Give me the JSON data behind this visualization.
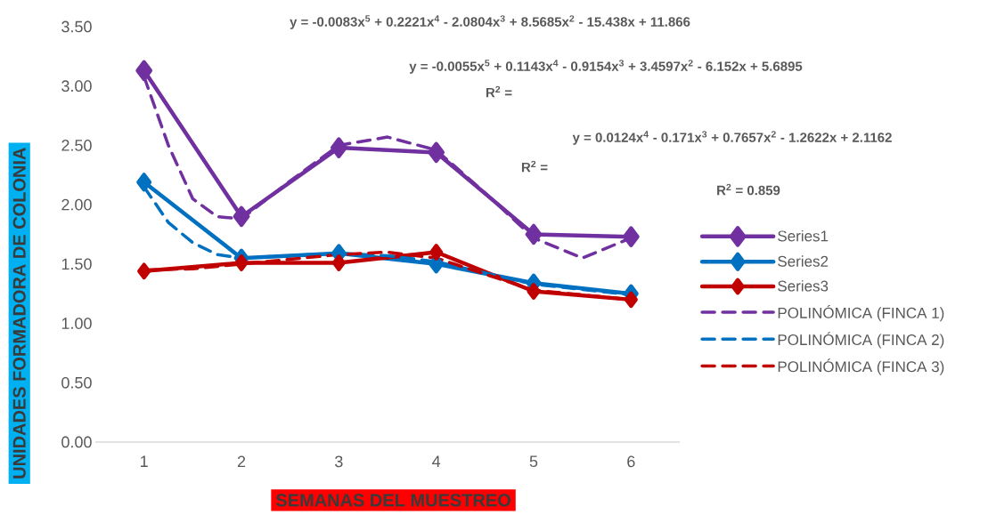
{
  "chart_data": {
    "type": "line",
    "xlabel": "SEMANAS DEL MUESTREO",
    "ylabel": "UNIDADES FORMADORA DE COLONIA",
    "x": [
      1,
      2,
      3,
      4,
      5,
      6
    ],
    "series": [
      {
        "name": "Series1",
        "color": "#7030a0",
        "marker": "diamond",
        "line_style": "solid",
        "values": [
          3.13,
          1.9,
          2.48,
          2.44,
          1.75,
          1.73
        ]
      },
      {
        "name": "Series2",
        "color": "#0070c0",
        "marker": "diamond",
        "line_style": "solid",
        "values": [
          2.19,
          1.55,
          1.59,
          1.5,
          1.34,
          1.25
        ]
      },
      {
        "name": "Series3",
        "color": "#c00000",
        "marker": "diamond",
        "line_style": "solid",
        "values": [
          1.44,
          1.51,
          1.51,
          1.6,
          1.27,
          1.2
        ]
      },
      {
        "name": "POLINÓMICA (FINCA 1)",
        "type": "line",
        "color": "#7030a0",
        "marker": "none",
        "line_style": "dashed",
        "x": [
          1,
          1.25,
          1.5,
          1.75,
          2,
          2.5,
          3,
          3.5,
          4,
          4.5,
          5,
          5.5,
          6
        ],
        "values": [
          3.08,
          2.5,
          2.05,
          1.9,
          1.88,
          2.2,
          2.5,
          2.57,
          2.46,
          2.1,
          1.72,
          1.55,
          1.72
        ]
      },
      {
        "name": "POLINÓMICA (FINCA 2)",
        "type": "line",
        "color": "#0070c0",
        "marker": "none",
        "line_style": "dashed",
        "x": [
          1,
          1.25,
          1.5,
          1.75,
          2,
          3,
          3.5,
          4,
          5,
          6
        ],
        "values": [
          2.15,
          1.85,
          1.68,
          1.58,
          1.55,
          1.59,
          1.57,
          1.52,
          1.33,
          1.24
        ]
      },
      {
        "name": "POLINÓMICA (FINCA 3)",
        "type": "line",
        "color": "#c00000",
        "marker": "none",
        "line_style": "dashed",
        "x": [
          1,
          1.5,
          2,
          3,
          3.5,
          4,
          5,
          6
        ],
        "values": [
          1.45,
          1.46,
          1.5,
          1.58,
          1.6,
          1.55,
          1.28,
          1.2
        ]
      }
    ],
    "xlim": [
      0.5,
      6.5
    ],
    "xticks": [
      1,
      2,
      3,
      4,
      5,
      6
    ],
    "ylim": [
      0,
      3.5
    ],
    "yticks": [
      {
        "value": 0,
        "label": "0.00"
      },
      {
        "value": 0.5,
        "label": "0.50"
      },
      {
        "value": 1,
        "label": "1.00"
      },
      {
        "value": 1.5,
        "label": "1.50"
      },
      {
        "value": 2,
        "label": "2.00"
      },
      {
        "value": 2.5,
        "label": "2.50"
      },
      {
        "value": 3,
        "label": "3.00"
      },
      {
        "value": 3.5,
        "label": "3.50"
      }
    ],
    "legend": "right",
    "annotations": [
      "y = -0.0083x$^{5}$ + 0.2221x$^{4}$ - 2.0804x$^{3}$ + 8.5685x$^{2}$ - 15.438x + 11.866",
      "y = -0.0055x$^{5}$ + 0.1143x$^{4}$ - 0.9154x$^{3}$ + 3.4597x$^{2}$ - 6.152x + 5.6895",
      "R$^{2}$ =",
      "y = 0.0124x$^{4}$ - 0.171x$^{3}$ + 0.7657x$^{2}$ - 1.2622x + 2.1162",
      "R$^{2}$ =",
      "R$^{2}$ = 0.859"
    ]
  }
}
